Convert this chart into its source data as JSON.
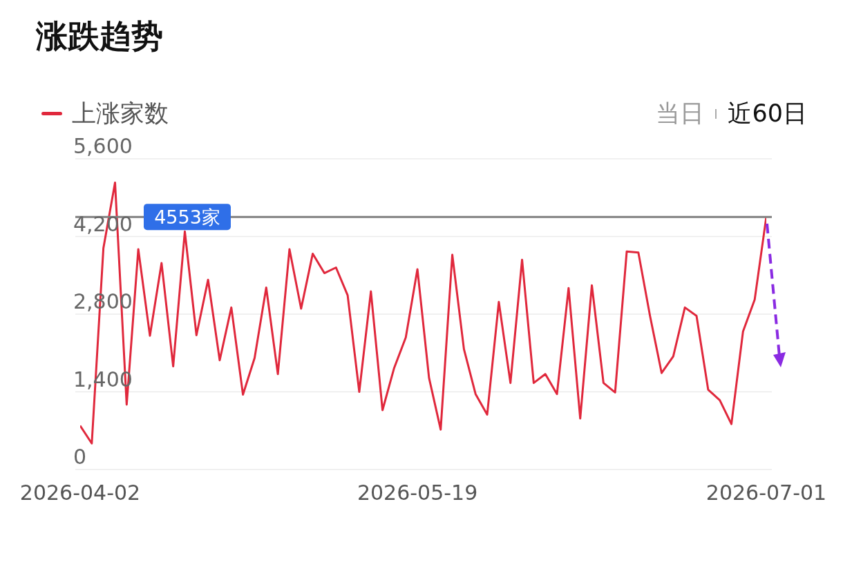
{
  "chart_data": {
    "type": "line",
    "title": "涨跌趋势",
    "categories": [
      "2026-04-02",
      null,
      null,
      null,
      null,
      null,
      null,
      null,
      null,
      null,
      null,
      null,
      null,
      null,
      null,
      null,
      null,
      null,
      null,
      null,
      null,
      null,
      null,
      null,
      null,
      null,
      null,
      null,
      null,
      "2026-05-19",
      null,
      null,
      null,
      null,
      null,
      null,
      null,
      null,
      null,
      null,
      null,
      null,
      null,
      null,
      null,
      null,
      null,
      null,
      null,
      null,
      null,
      null,
      null,
      null,
      null,
      null,
      null,
      null,
      null,
      "2026-07-01"
    ],
    "series": [
      {
        "name": "上涨家数",
        "color": "#e0283c",
        "values": [
          790,
          470,
          3990,
          5170,
          1170,
          3970,
          2410,
          3720,
          1860,
          4290,
          2420,
          3420,
          1970,
          2920,
          1350,
          2010,
          3280,
          1720,
          3970,
          2900,
          3890,
          3540,
          3640,
          3140,
          1400,
          3210,
          1070,
          1830,
          2380,
          3610,
          1650,
          720,
          3870,
          2170,
          1360,
          990,
          3020,
          1560,
          3780,
          1560,
          1720,
          1360,
          3270,
          920,
          3320,
          1560,
          1390,
          3930,
          3910,
          2770,
          1740,
          2040,
          2920,
          2770,
          1440,
          1250,
          820,
          2490,
          3060,
          4553
        ]
      }
    ],
    "ylim": [
      0,
      5600
    ],
    "yticks": [
      {
        "value": 0,
        "label": "0"
      },
      {
        "value": 1400,
        "label": "1,400"
      },
      {
        "value": 2800,
        "label": "2,800"
      },
      {
        "value": 4200,
        "label": "4,200"
      },
      {
        "value": 5600,
        "label": "5,600"
      }
    ],
    "grid": "y",
    "legend": "top left",
    "marker": "none",
    "line_style": "solid",
    "ref_lines": [
      {
        "axis": "y",
        "value": 4553,
        "label": "4553家",
        "color": "#808080"
      }
    ],
    "annotations": [
      "当日",
      "近60日"
    ]
  }
}
